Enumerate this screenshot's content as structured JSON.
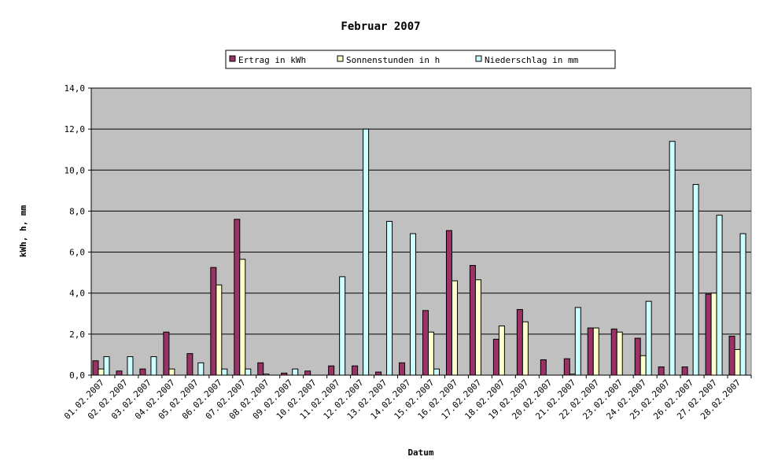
{
  "chart_data": {
    "type": "bar",
    "title": "Februar 2007",
    "xlabel": "Datum",
    "ylabel": "kWh, h, mm",
    "ylim": [
      0,
      14
    ],
    "yticks": [
      "0,0",
      "2,0",
      "4,0",
      "6,0",
      "8,0",
      "10,0",
      "12,0",
      "14,0"
    ],
    "grid": true,
    "legend_position": "top",
    "plot_background": "#c0c0c0",
    "categories": [
      "01.02.2007",
      "02.02.2007",
      "03.02.2007",
      "04.02.2007",
      "05.02.2007",
      "06.02.2007",
      "07.02.2007",
      "08.02.2007",
      "09.02.2007",
      "10.02.2007",
      "11.02.2007",
      "12.02.2007",
      "13.02.2007",
      "14.02.2007",
      "15.02.2007",
      "16.02.2007",
      "17.02.2007",
      "18.02.2007",
      "19.02.2007",
      "20.02.2007",
      "21.02.2007",
      "22.02.2007",
      "23.02.2007",
      "24.02.2007",
      "25.02.2007",
      "26.02.2007",
      "27.02.2007",
      "28.02.2007"
    ],
    "series": [
      {
        "name": "Ertrag in kWh",
        "color": "#993366",
        "values": [
          0.7,
          0.2,
          0.3,
          2.1,
          1.05,
          5.25,
          7.6,
          0.6,
          0.1,
          0.2,
          0.45,
          0.45,
          0.15,
          0.6,
          3.15,
          7.05,
          5.35,
          1.75,
          3.2,
          0.75,
          0.8,
          2.3,
          2.25,
          1.8,
          0.4,
          0.4,
          3.95,
          1.9
        ]
      },
      {
        "name": "Sonnenstunden in h",
        "color": "#ffffcc",
        "values": [
          0.3,
          0,
          0,
          0.3,
          0,
          4.4,
          5.65,
          0.05,
          0,
          0,
          0,
          0,
          0,
          0,
          2.1,
          4.6,
          4.65,
          2.4,
          2.6,
          0,
          0.05,
          2.3,
          2.1,
          0.95,
          0,
          0,
          4.0,
          1.25
        ]
      },
      {
        "name": "Niederschlag in mm",
        "color": "#ccffff",
        "values": [
          0.9,
          0.9,
          0.9,
          0,
          0.6,
          0.3,
          0.3,
          0,
          0.3,
          0,
          4.8,
          12.0,
          7.5,
          6.9,
          0.3,
          0,
          0,
          0,
          0,
          0,
          3.3,
          0,
          0,
          3.6,
          11.4,
          9.3,
          7.8,
          6.9
        ]
      }
    ]
  }
}
